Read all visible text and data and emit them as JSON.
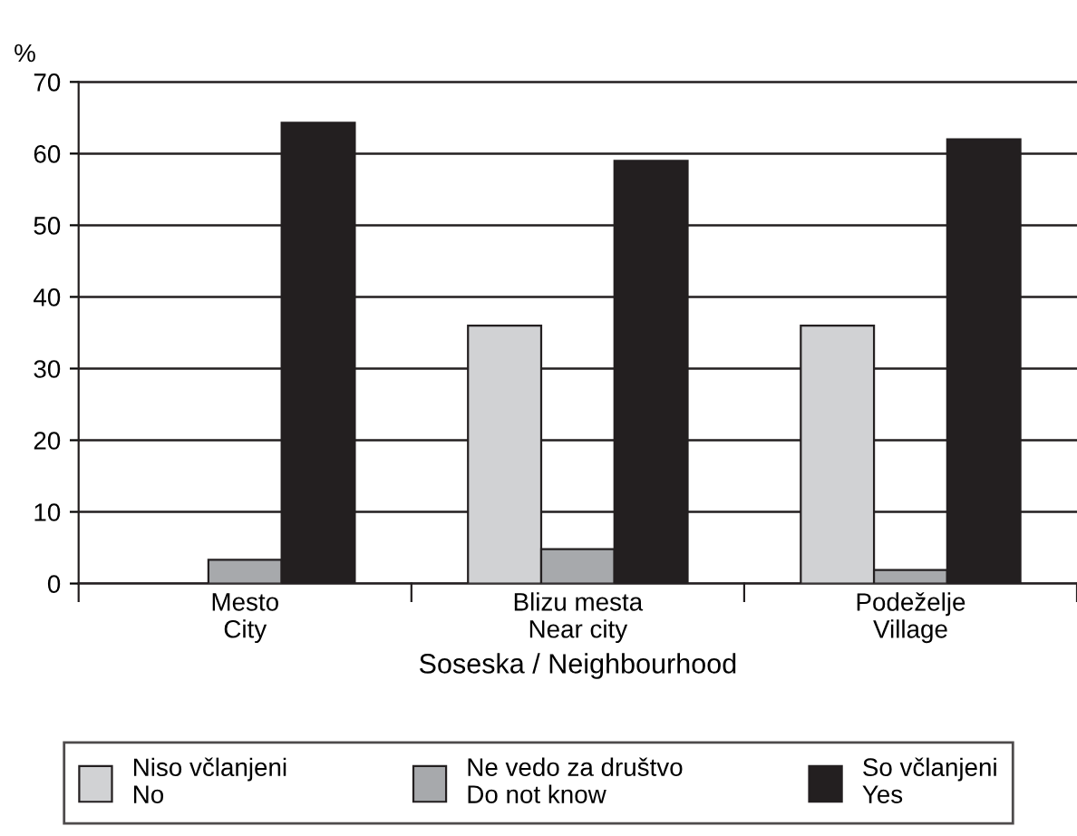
{
  "chart_data": {
    "type": "bar",
    "ylabel": "%",
    "xlabel": "Soseska / Neighbourhood",
    "categories": [
      "Mesto\nCity",
      "Blizu mesta\nNear city",
      "Podeželje\nVillage"
    ],
    "series": [
      {
        "name": "Niso včlanjeni\nNo",
        "color": "#d1d2d4",
        "values": [
          null,
          36,
          36
        ]
      },
      {
        "name": "Ne vedo za društvo\nDo not know",
        "color": "#a7a9ac",
        "values": [
          3.3,
          4.8,
          1.9
        ]
      },
      {
        "name": "So včlanjeni\nYes",
        "color": "#231f20",
        "values": [
          64.3,
          59,
          62
        ]
      }
    ],
    "ylim": [
      0,
      70
    ],
    "yticks": [
      0,
      10,
      20,
      30,
      40,
      50,
      60,
      70
    ],
    "grid": "y",
    "legend": "bottom"
  }
}
